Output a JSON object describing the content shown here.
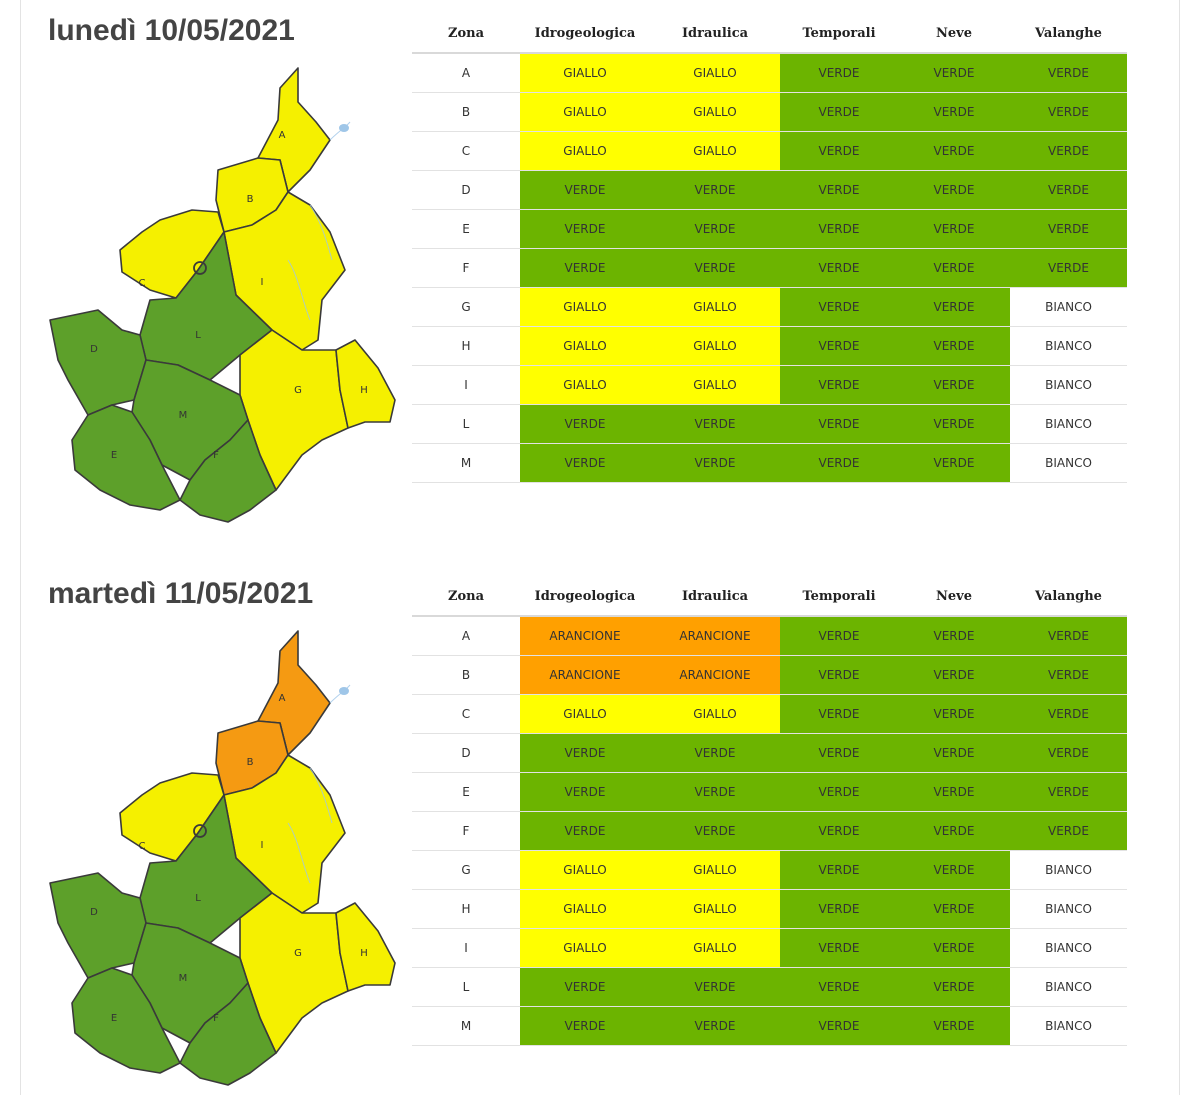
{
  "colors": {
    "GIALLO": "#ffff00",
    "VERDE": "#6cb400",
    "ARANCIONE": "#ffa000",
    "BIANCO": "#ffffff"
  },
  "headers": [
    "Zona",
    "Idrogeologica",
    "Idraulica",
    "Temporali",
    "Neve",
    "Valanghe"
  ],
  "days": [
    {
      "title": "lunedì 10/05/2021",
      "map_zones": {
        "A": "GIALLO",
        "B": "GIALLO",
        "C": "GIALLO",
        "D": "VERDE",
        "E": "VERDE",
        "F": "VERDE",
        "G": "GIALLO",
        "H": "GIALLO",
        "I": "GIALLO",
        "L": "VERDE",
        "M": "VERDE"
      },
      "rows": [
        [
          "A",
          "GIALLO",
          "GIALLO",
          "VERDE",
          "VERDE",
          "VERDE"
        ],
        [
          "B",
          "GIALLO",
          "GIALLO",
          "VERDE",
          "VERDE",
          "VERDE"
        ],
        [
          "C",
          "GIALLO",
          "GIALLO",
          "VERDE",
          "VERDE",
          "VERDE"
        ],
        [
          "D",
          "VERDE",
          "VERDE",
          "VERDE",
          "VERDE",
          "VERDE"
        ],
        [
          "E",
          "VERDE",
          "VERDE",
          "VERDE",
          "VERDE",
          "VERDE"
        ],
        [
          "F",
          "VERDE",
          "VERDE",
          "VERDE",
          "VERDE",
          "VERDE"
        ],
        [
          "G",
          "GIALLO",
          "GIALLO",
          "VERDE",
          "VERDE",
          "BIANCO"
        ],
        [
          "H",
          "GIALLO",
          "GIALLO",
          "VERDE",
          "VERDE",
          "BIANCO"
        ],
        [
          "I",
          "GIALLO",
          "GIALLO",
          "VERDE",
          "VERDE",
          "BIANCO"
        ],
        [
          "L",
          "VERDE",
          "VERDE",
          "VERDE",
          "VERDE",
          "BIANCO"
        ],
        [
          "M",
          "VERDE",
          "VERDE",
          "VERDE",
          "VERDE",
          "BIANCO"
        ]
      ]
    },
    {
      "title": "martedì 11/05/2021",
      "map_zones": {
        "A": "ARANCIONE",
        "B": "ARANCIONE",
        "C": "GIALLO",
        "D": "VERDE",
        "E": "VERDE",
        "F": "VERDE",
        "G": "GIALLO",
        "H": "GIALLO",
        "I": "GIALLO",
        "L": "VERDE",
        "M": "VERDE"
      },
      "rows": [
        [
          "A",
          "ARANCIONE",
          "ARANCIONE",
          "VERDE",
          "VERDE",
          "VERDE"
        ],
        [
          "B",
          "ARANCIONE",
          "ARANCIONE",
          "VERDE",
          "VERDE",
          "VERDE"
        ],
        [
          "C",
          "GIALLO",
          "GIALLO",
          "VERDE",
          "VERDE",
          "VERDE"
        ],
        [
          "D",
          "VERDE",
          "VERDE",
          "VERDE",
          "VERDE",
          "VERDE"
        ],
        [
          "E",
          "VERDE",
          "VERDE",
          "VERDE",
          "VERDE",
          "VERDE"
        ],
        [
          "F",
          "VERDE",
          "VERDE",
          "VERDE",
          "VERDE",
          "VERDE"
        ],
        [
          "G",
          "GIALLO",
          "GIALLO",
          "VERDE",
          "VERDE",
          "BIANCO"
        ],
        [
          "H",
          "GIALLO",
          "GIALLO",
          "VERDE",
          "VERDE",
          "BIANCO"
        ],
        [
          "I",
          "GIALLO",
          "GIALLO",
          "VERDE",
          "VERDE",
          "BIANCO"
        ],
        [
          "L",
          "VERDE",
          "VERDE",
          "VERDE",
          "VERDE",
          "BIANCO"
        ],
        [
          "M",
          "VERDE",
          "VERDE",
          "VERDE",
          "VERDE",
          "BIANCO"
        ]
      ]
    }
  ]
}
